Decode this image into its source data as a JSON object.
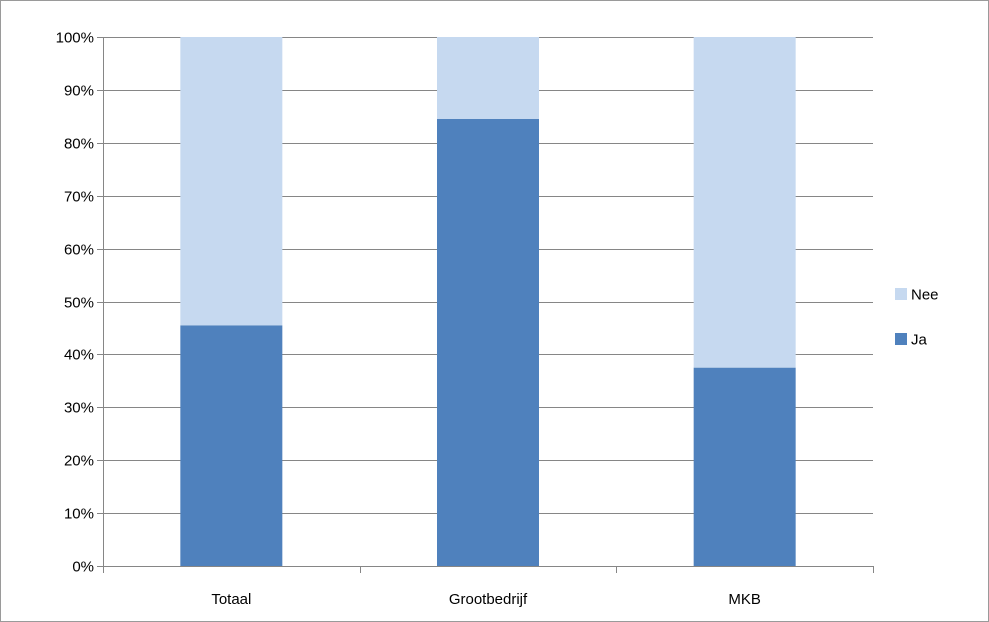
{
  "chart_data": {
    "type": "bar",
    "stacked": true,
    "percent": true,
    "categories": [
      "Totaal",
      "Grootbedrijf",
      "MKB"
    ],
    "series": [
      {
        "name": "Ja",
        "values": [
          45.5,
          84.5,
          37.5
        ],
        "color": "#4f81bd"
      },
      {
        "name": "Nee",
        "values": [
          54.5,
          15.5,
          62.5
        ],
        "color": "#c6d9f0"
      }
    ],
    "yticks": [
      "0%",
      "10%",
      "20%",
      "30%",
      "40%",
      "50%",
      "60%",
      "70%",
      "80%",
      "90%",
      "100%"
    ],
    "ylim": [
      0,
      100
    ],
    "grid": true,
    "legend_position": "right",
    "legend_order": [
      "Nee",
      "Ja"
    ],
    "gridline_color": "#868686",
    "title": "",
    "xlabel": "",
    "ylabel": ""
  }
}
